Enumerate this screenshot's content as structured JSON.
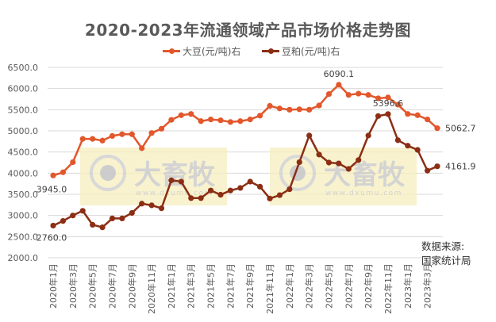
{
  "title": "2020-2023年流通领域产品市场价格走势图",
  "legend": [
    {
      "label": "大豆(元/吨)右",
      "color": "#E2572B"
    },
    {
      "label": "豆粕(元/吨)右",
      "color": "#8B2E14"
    }
  ],
  "source": {
    "line1": "数据来源:",
    "line2": "国家统计局"
  },
  "watermark": {
    "text": "大畜牧",
    "url": "www.dxumu.com"
  },
  "chart_data": {
    "type": "line",
    "title": "2020-2023年流通领域产品市场价格走势图",
    "xlabel": "",
    "ylabel": "",
    "ylim": [
      2000,
      6500
    ],
    "yticks": [
      "6500.0",
      "6000.0",
      "5500.0",
      "5000.0",
      "4500.0",
      "4000.0",
      "3500.0",
      "3000.0",
      "2500.0",
      "2000.0"
    ],
    "grid": true,
    "legend_position": "top",
    "x": [
      "2020年1月",
      "2020年2月",
      "2020年3月",
      "2020年4月",
      "2020年5月",
      "2020年6月",
      "2020年7月",
      "2020年8月",
      "2020年9月",
      "2020年10月",
      "2020年11月",
      "2020年12月",
      "2021年1月",
      "2021年2月",
      "2021年3月",
      "2021年4月",
      "2021年5月",
      "2021年6月",
      "2021年7月",
      "2021年8月",
      "2021年9月",
      "2021年10月",
      "2021年11月",
      "2021年12月",
      "2022年1月",
      "2022年2月",
      "2022年3月",
      "2022年4月",
      "2022年5月",
      "2022年6月",
      "2022年7月",
      "2022年8月",
      "2022年9月",
      "2022年10月",
      "2022年11月",
      "2022年12月",
      "2023年1月",
      "2023年2月",
      "2023年3月",
      "2023年4月"
    ],
    "xtick_labels": [
      "2020年1月",
      "2020年3月",
      "2020年5月",
      "2020年7月",
      "2020年9月",
      "2020年11月",
      "2021年1月",
      "2021年3月",
      "2021年5月",
      "2021年7月",
      "2021年9月",
      "2021年11月",
      "2022年1月",
      "2022年3月",
      "2022年5月",
      "2022年7月",
      "2022年9月",
      "2022年11月",
      "2023年1月",
      "2023年3月"
    ],
    "series": [
      {
        "name": "大豆(元/吨)右",
        "color": "#E2572B",
        "values": [
          3945.0,
          4020,
          4260,
          4810,
          4810,
          4770,
          4880,
          4920,
          4920,
          4590,
          4950,
          5050,
          5260,
          5370,
          5400,
          5230,
          5270,
          5250,
          5210,
          5230,
          5270,
          5360,
          5590,
          5530,
          5500,
          5510,
          5500,
          5600,
          5870,
          6090.1,
          5850,
          5880,
          5850,
          5770,
          5790,
          5620,
          5400,
          5370,
          5270,
          5062.7
        ],
        "annotations": [
          {
            "index": 0,
            "text": "3945.0"
          },
          {
            "index": 29,
            "text": "6090.1"
          },
          {
            "index": 39,
            "text": "5062.7"
          }
        ]
      },
      {
        "name": "豆粕(元/吨)右",
        "color": "#8B2E14",
        "values": [
          2760.0,
          2870,
          3000,
          3110,
          2780,
          2720,
          2930,
          2930,
          3060,
          3280,
          3240,
          3170,
          3830,
          3800,
          3410,
          3410,
          3590,
          3490,
          3590,
          3650,
          3800,
          3680,
          3400,
          3480,
          3620,
          4260,
          4890,
          4440,
          4250,
          4230,
          4100,
          4310,
          4890,
          5350,
          5396.6,
          4780,
          4650,
          4550,
          4060,
          4161.9
        ],
        "annotations": [
          {
            "index": 0,
            "text": "2760.0"
          },
          {
            "index": 34,
            "text": "5396.6"
          },
          {
            "index": 39,
            "text": "4161.9"
          }
        ]
      }
    ]
  }
}
